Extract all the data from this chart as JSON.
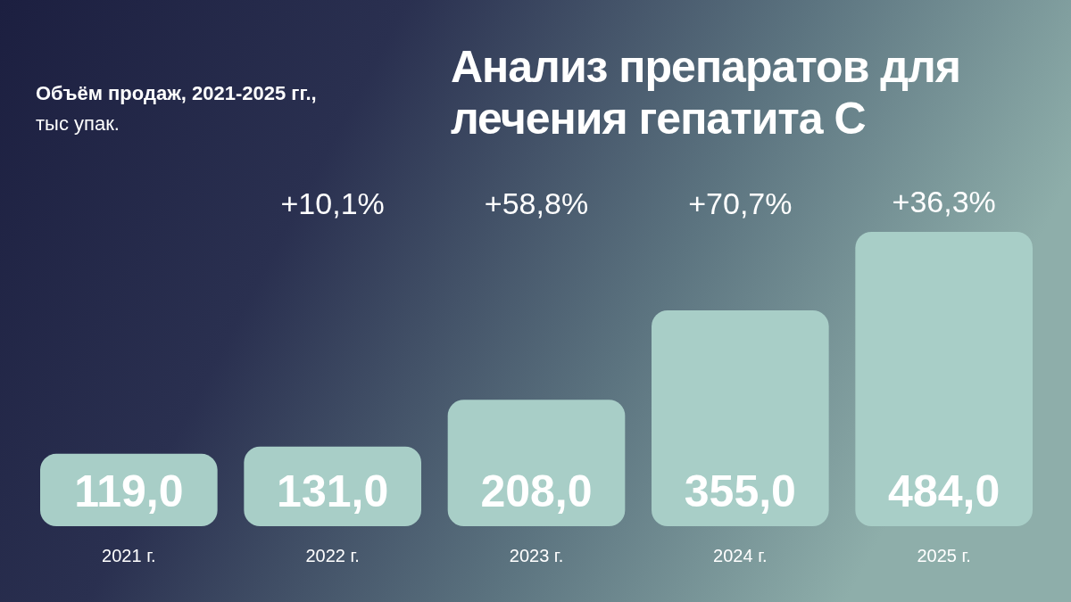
{
  "chart_data": {
    "type": "bar",
    "title": "Анализ препаратов для лечения гепатита С",
    "subtitle": "Объём продаж, 2021-2025 гг.,",
    "ylabel": "тыс упак.",
    "categories": [
      "2021 г.",
      "2022 г.",
      "2023 г.",
      "2024 г.",
      "2025 г."
    ],
    "values": [
      119.0,
      131.0,
      208.0,
      355.0,
      484.0
    ],
    "value_labels": [
      "119,0",
      "131,0",
      "208,0",
      "355,0",
      "484,0"
    ],
    "color": "#a8cec7",
    "annotations": [
      "+10,1%",
      "+58,8%",
      "+70,7%",
      "+36,3%"
    ]
  }
}
